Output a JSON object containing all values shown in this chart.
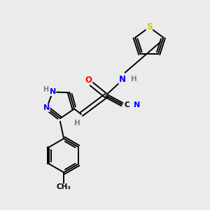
{
  "background_color": "#ebebeb",
  "bond_color": "#000000",
  "atom_colors": {
    "N": "#0000ff",
    "O": "#ff0000",
    "S": "#cccc00",
    "C": "#000000",
    "H": "#808080"
  },
  "figsize": [
    3.0,
    3.0
  ],
  "dpi": 100
}
